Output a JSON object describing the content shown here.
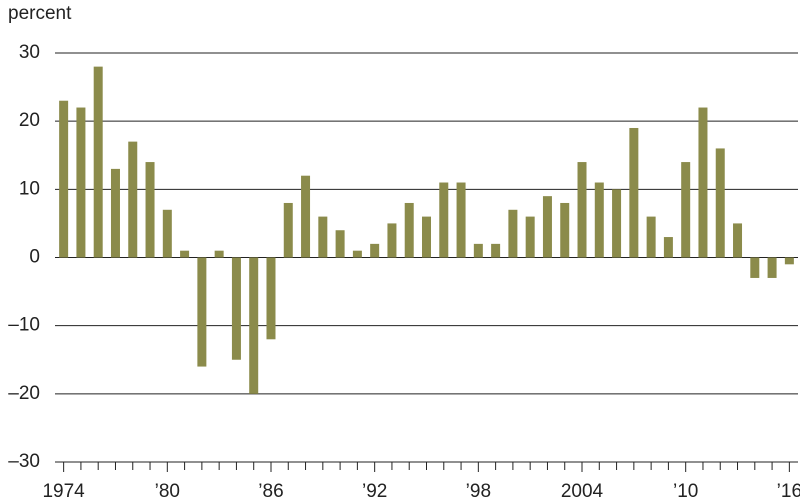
{
  "chart_data": {
    "type": "bar",
    "y_label": "percent",
    "categories": [
      "1974",
      null,
      null,
      null,
      null,
      null,
      "’80",
      null,
      null,
      null,
      null,
      null,
      "’86",
      null,
      null,
      null,
      null,
      null,
      "’92",
      null,
      null,
      null,
      null,
      null,
      "’98",
      null,
      null,
      null,
      null,
      null,
      "2004",
      null,
      null,
      null,
      null,
      null,
      "’10",
      null,
      null,
      null,
      null,
      null,
      "’16"
    ],
    "values": [
      23,
      22,
      28,
      13,
      17,
      14,
      7,
      1,
      -16,
      1,
      -15,
      -20,
      -12,
      8,
      12,
      6,
      4,
      1,
      2,
      5,
      8,
      6,
      11,
      11,
      2,
      2,
      7,
      6,
      9,
      8,
      14,
      11,
      10,
      19,
      6,
      3,
      14,
      22,
      16,
      5,
      -3,
      -3,
      -1
    ],
    "color": "#8b8b4b",
    "ylim": [
      -30,
      30
    ],
    "yticks": [
      {
        "value": -30,
        "label": "–30"
      },
      {
        "value": -20,
        "label": "–20"
      },
      {
        "value": -10,
        "label": "–10"
      },
      0,
      10,
      20,
      30
    ],
    "grid": true
  }
}
